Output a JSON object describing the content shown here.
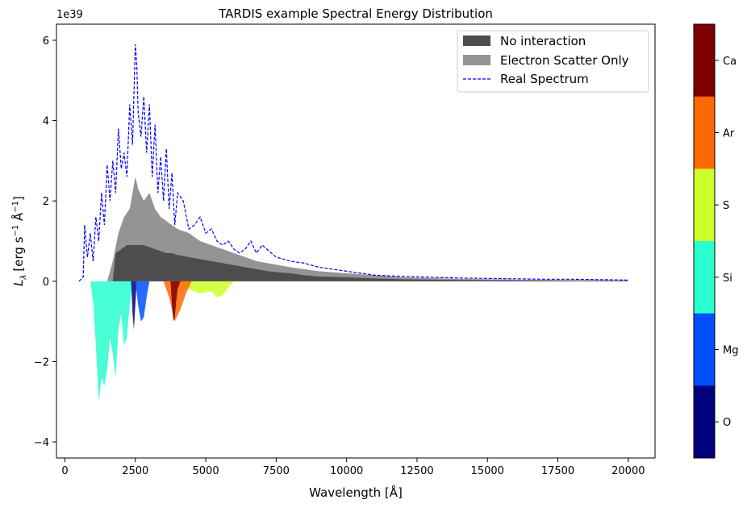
{
  "chart_data": {
    "type": "area",
    "title": "TARDIS example Spectral Energy Distribution",
    "xlabel": "Wavelength [Å]",
    "ylabel_main": "L",
    "ylabel_sub": "λ",
    "ylabel_unit": "[erg s",
    "ylabel_exp1": "−1",
    "ylabel_mid": " Å",
    "ylabel_exp2": "−1",
    "ylabel_end": "]",
    "y_offset_label": "1e39",
    "y_scale": 1e+39,
    "xlim": [
      -300,
      20950
    ],
    "ylim": [
      -4.4,
      6.4
    ],
    "x_ticks": [
      0,
      2500,
      5000,
      7500,
      10000,
      12500,
      15000,
      17500,
      20000
    ],
    "x_tick_labels": [
      "0",
      "2500",
      "5000",
      "7500",
      "10000",
      "12500",
      "15000",
      "17500",
      "20000"
    ],
    "y_ticks": [
      -4,
      -2,
      0,
      2,
      4,
      6
    ],
    "y_tick_labels": [
      "−4",
      "−2",
      "0",
      "2",
      "4",
      "6"
    ],
    "grid": false,
    "legend_position": "top-right",
    "legend": [
      {
        "label": "No interaction",
        "kind": "patch",
        "color": "#4d4d4d"
      },
      {
        "label": "Electron Scatter Only",
        "kind": "patch",
        "color": "#949494"
      },
      {
        "label": "Real Spectrum",
        "kind": "dashed-line",
        "color": "#0000ff"
      }
    ],
    "series": [
      {
        "name": "Real Spectrum",
        "color": "#0000ff",
        "style": "dashed",
        "x": [
          500,
          650,
          700,
          800,
          900,
          1000,
          1100,
          1200,
          1300,
          1400,
          1500,
          1600,
          1700,
          1800,
          1900,
          2000,
          2100,
          2200,
          2300,
          2400,
          2500,
          2550,
          2600,
          2700,
          2800,
          2900,
          3000,
          3100,
          3200,
          3300,
          3400,
          3500,
          3600,
          3700,
          3800,
          3900,
          4000,
          4200,
          4400,
          4600,
          4800,
          5000,
          5200,
          5400,
          5600,
          5800,
          6000,
          6200,
          6400,
          6600,
          6800,
          7000,
          7500,
          8000,
          8500,
          9000,
          9500,
          10000,
          10500,
          11000,
          12000,
          13000,
          14000,
          15000,
          16000,
          17000,
          18000,
          19000,
          20000
        ],
        "y": [
          0.0,
          0.1,
          1.4,
          0.6,
          1.2,
          0.5,
          1.6,
          1.0,
          2.2,
          1.4,
          2.9,
          2.0,
          3.0,
          2.2,
          3.8,
          2.8,
          3.2,
          2.6,
          4.4,
          3.4,
          5.9,
          5.4,
          4.2,
          3.6,
          4.6,
          3.2,
          4.4,
          2.6,
          3.9,
          2.2,
          3.1,
          2.0,
          3.3,
          1.8,
          2.7,
          1.4,
          2.2,
          2.0,
          1.3,
          1.4,
          1.6,
          1.2,
          1.3,
          1.0,
          0.9,
          1.0,
          0.8,
          0.7,
          0.8,
          1.0,
          0.7,
          0.9,
          0.6,
          0.5,
          0.45,
          0.35,
          0.3,
          0.25,
          0.2,
          0.15,
          0.12,
          0.1,
          0.08,
          0.07,
          0.06,
          0.05,
          0.05,
          0.04,
          0.03
        ]
      },
      {
        "name": "Electron Scatter Only",
        "color": "#949494",
        "x": [
          500,
          700,
          900,
          1100,
          1300,
          1500,
          1700,
          1900,
          2100,
          2300,
          2500,
          2600,
          2800,
          3000,
          3200,
          3400,
          3600,
          3800,
          4000,
          4400,
          4800,
          5200,
          5600,
          6000,
          6400,
          6800,
          7200,
          7600,
          8000,
          8500,
          9000,
          10000,
          11000,
          12000,
          14000,
          16000,
          18000,
          20000
        ],
        "y": [
          0.0,
          0.0,
          0.0,
          0.0,
          0.0,
          0.0,
          0.5,
          1.2,
          1.6,
          1.8,
          2.6,
          2.3,
          2.0,
          2.2,
          1.8,
          1.6,
          1.5,
          1.4,
          1.3,
          1.2,
          1.0,
          0.9,
          0.8,
          0.7,
          0.6,
          0.5,
          0.45,
          0.4,
          0.35,
          0.3,
          0.25,
          0.2,
          0.15,
          0.1,
          0.06,
          0.04,
          0.03,
          0.02
        ]
      },
      {
        "name": "No interaction",
        "color": "#4d4d4d",
        "x": [
          500,
          700,
          900,
          1100,
          1300,
          1500,
          1700,
          1800,
          2000,
          2200,
          2400,
          2600,
          2800,
          3000,
          3200,
          3400,
          3600,
          3800,
          4000,
          4400,
          4800,
          5200,
          5600,
          6000,
          6400,
          6800,
          7200,
          7600,
          8000,
          8500,
          9000,
          10000,
          11000,
          12000,
          14000,
          16000,
          18000,
          20000
        ],
        "y": [
          0.0,
          0.0,
          0.0,
          0.0,
          0.0,
          0.0,
          0.0,
          0.7,
          0.8,
          0.9,
          0.9,
          0.9,
          0.9,
          0.85,
          0.8,
          0.75,
          0.7,
          0.7,
          0.65,
          0.6,
          0.55,
          0.5,
          0.45,
          0.4,
          0.35,
          0.3,
          0.25,
          0.22,
          0.2,
          0.15,
          0.12,
          0.1,
          0.07,
          0.05,
          0.03,
          0.02,
          0.015,
          0.01
        ]
      },
      {
        "name": "O",
        "color": "#00007f",
        "x": [
          2350,
          2400,
          2450,
          2500,
          2550
        ],
        "y": [
          0.0,
          -0.8,
          -1.2,
          -0.6,
          0.0
        ]
      },
      {
        "name": "Mg",
        "color": "#0050ff",
        "x": [
          2500,
          2600,
          2700,
          2800,
          2900,
          3000
        ],
        "y": [
          0.0,
          -0.6,
          -1.0,
          -0.9,
          -0.4,
          0.0
        ]
      },
      {
        "name": "Si",
        "color": "#29ffce",
        "x": [
          900,
          1000,
          1100,
          1200,
          1300,
          1400,
          1500,
          1600,
          1700,
          1800,
          1900,
          2000,
          2100,
          2200,
          2300,
          2400
        ],
        "y": [
          0.0,
          -0.5,
          -1.6,
          -3.0,
          -2.4,
          -2.6,
          -2.2,
          -1.4,
          -1.8,
          -2.4,
          -1.2,
          -0.8,
          -1.6,
          -1.4,
          -0.6,
          0.0
        ]
      },
      {
        "name": "S",
        "color": "#ceff29",
        "x": [
          4000,
          4400,
          4800,
          5200,
          5400,
          5600,
          5800,
          6000
        ],
        "y": [
          0.0,
          -0.2,
          -0.3,
          -0.25,
          -0.4,
          -0.35,
          -0.15,
          0.0
        ]
      },
      {
        "name": "Ar",
        "color": "#ff6800",
        "x": [
          3500,
          3700,
          3900,
          4100,
          4300,
          4500
        ],
        "y": [
          0.0,
          -0.4,
          -1.0,
          -0.7,
          -0.3,
          0.0
        ]
      },
      {
        "name": "Ca",
        "color": "#7f0000",
        "x": [
          3750,
          3800,
          3850,
          3900,
          3950,
          4000,
          4100
        ],
        "y": [
          0.0,
          -0.6,
          -1.0,
          -0.9,
          -0.5,
          -0.2,
          0.0
        ]
      }
    ],
    "colorbar": {
      "labels": [
        "Ca",
        "Ar",
        "S",
        "Si",
        "Mg",
        "O"
      ],
      "colors": [
        "#7f0000",
        "#ff6800",
        "#ceff29",
        "#29ffce",
        "#0050ff",
        "#00007f"
      ]
    }
  }
}
